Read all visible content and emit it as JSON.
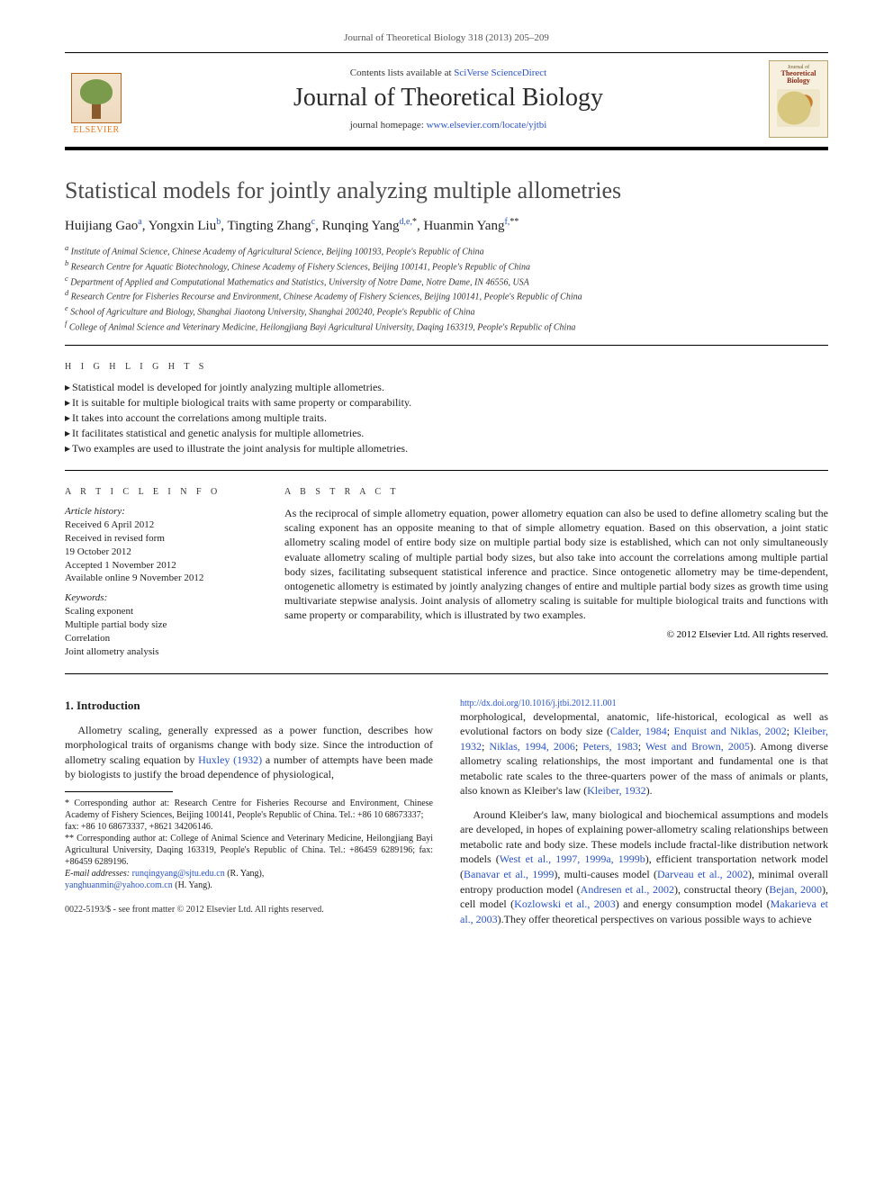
{
  "top_citation": "Journal of Theoretical Biology 318 (2013) 205–209",
  "header": {
    "contents_prefix": "Contents lists available at ",
    "contents_link": "SciVerse ScienceDirect",
    "journal_name": "Journal of Theoretical Biology",
    "homepage_prefix": "journal homepage: ",
    "homepage_link": "www.elsevier.com/locate/yjtbi",
    "elsevier_word": "ELSEVIER",
    "cover_small1": "Journal of",
    "cover_small2a": "Theoretical",
    "cover_small2b": "Biology"
  },
  "title": "Statistical models for jointly analyzing multiple allometries",
  "authors_html": {
    "a1_name": "Huijiang Gao",
    "a1_sup": "a",
    "a2_name": "Yongxin Liu",
    "a2_sup": "b",
    "a3_name": "Tingting Zhang",
    "a3_sup": "c",
    "a4_name": "Runqing Yang",
    "a4_sup": "d,e,",
    "a4_star": "*",
    "a5_name": "Huanmin Yang",
    "a5_sup": "f,",
    "a5_star": "**"
  },
  "affiliations": {
    "a": "Institute of Animal Science, Chinese Academy of Agricultural Science, Beijing 100193, People's Republic of China",
    "b": "Research Centre for Aquatic Biotechnology, Chinese Academy of Fishery Sciences, Beijing 100141, People's Republic of China",
    "c": "Department of Applied and Computational Mathematics and Statistics, University of Notre Dame, Notre Dame, IN 46556, USA",
    "d": "Research Centre for Fisheries Recourse and Environment, Chinese Academy of Fishery Sciences, Beijing 100141, People's Republic of China",
    "e": "School of Agriculture and Biology, Shanghai Jiaotong University, Shanghai 200240, People's Republic of China",
    "f": "College of Animal Science and Veterinary Medicine, Heilongjiang Bayi Agricultural University, Daqing 163319, People's Republic of China"
  },
  "labels": {
    "highlights": "H I G H L I G H T S",
    "article_info": "A R T I C L E   I N F O",
    "abstract": "A B S T R A C T"
  },
  "highlights": [
    "Statistical model is developed for jointly analyzing multiple allometries.",
    "It is suitable for multiple biological traits with same property or comparability.",
    "It takes into account the correlations among multiple traits.",
    "It facilitates statistical and genetic analysis for multiple allometries.",
    "Two examples are used to illustrate the joint analysis for multiple allometries."
  ],
  "article_info": {
    "history_h": "Article history:",
    "history": [
      "Received 6 April 2012",
      "Received in revised form",
      "19 October 2012",
      "Accepted 1 November 2012",
      "Available online 9 November 2012"
    ],
    "keywords_h": "Keywords:",
    "keywords": [
      "Scaling exponent",
      "Multiple partial body size",
      "Correlation",
      "Joint allometry analysis"
    ]
  },
  "abstract": "As the reciprocal of simple allometry equation, power allometry equation can also be used to define allometry scaling but the scaling exponent has an opposite meaning to that of simple allometry equation. Based on this observation, a joint static allometry scaling model of entire body size on multiple partial body size is established, which can not only simultaneously evaluate allometry scaling of multiple partial body sizes, but also take into account the correlations among multiple partial body sizes, facilitating subsequent statistical inference and practice. Since ontogenetic allometry may be time-dependent, ontogenetic allometry is estimated by jointly analyzing changes of entire and multiple partial body sizes as growth time using multivariate stepwise analysis. Joint analysis of allometry scaling is suitable for multiple biological traits and functions with same property or comparability, which is illustrated by two examples.",
  "copyright": "© 2012 Elsevier Ltd. All rights reserved.",
  "body": {
    "sec1_h": "1. Introduction",
    "p1a": "Allometry scaling, generally expressed as a power function, describes how morphological traits of organisms change with body size. Since the introduction of allometry scaling equation by ",
    "p1_c1": "Huxley (1932)",
    "p1b": " a number of attempts have been made by biologists to justify the broad dependence of physiological, ",
    "p2a": "morphological, developmental, anatomic, life-historical, ecological as well as evolutional factors on body size (",
    "p2_c1": "Calder, 1984",
    "p2_s1": "; ",
    "p2_c2": "Enquist and Niklas, 2002",
    "p2_s2": "; ",
    "p2_c3": "Kleiber, 1932",
    "p2_s3": "; ",
    "p2_c4": "Niklas, 1994, 2006",
    "p2_s4": "; ",
    "p2_c5": "Peters, 1983",
    "p2_s5": "; ",
    "p2_c6": "West and Brown, 2005",
    "p2b": "). Among diverse allometry scaling relationships, the most important and fundamental one is that metabolic rate scales to the three-quarters power of the mass of animals or plants, also known as Kleiber's law (",
    "p2_c7": "Kleiber, 1932",
    "p2c": ").",
    "p3a": "Around Kleiber's law, many biological and biochemical assumptions and models are developed, in hopes of explaining power-allometry scaling relationships between metabolic rate and body size. These models include fractal-like distribution network models (",
    "p3_c1": "West et al., 1997, 1999a, 1999b",
    "p3b": "), efficient transportation network model (",
    "p3_c2": "Banavar et al., 1999",
    "p3c": "), multi-causes model (",
    "p3_c3": "Darveau et al., 2002",
    "p3d": "), minimal overall entropy production model (",
    "p3_c4": "Andresen et al., 2002",
    "p3e": "), constructal theory (",
    "p3_c5": "Bejan, 2000",
    "p3f": "), cell model (",
    "p3_c6": "Kozlowski et al., 2003",
    "p3g": ") and energy consumption model (",
    "p3_c7": "Makarieva et al., 2003",
    "p3h": ").They offer theoretical perspectives on various possible ways to achieve"
  },
  "footnotes": {
    "c1a": "* Corresponding author at: Research Centre for Fisheries Recourse and Environment, Chinese Academy of Fishery Sciences, Beijing 100141, People's Republic of China. Tel.: +86 10 68673337;",
    "c1b": "fax: +86 10 68673337, +8621 34206146.",
    "c2a": "** Corresponding author at: College of Animal Science and Veterinary Medicine, Heilongjiang Bayi Agricultural University, Daqing 163319, People's Republic of China. Tel.: +86459 6289196; fax: +86459 6289196.",
    "email_h": "E-mail addresses:",
    "email1": "runqingyang@sjtu.edu.cn",
    "email1_who": " (R. Yang),",
    "email2": "yanghuanmin@yahoo.com.cn",
    "email2_who": " (H. Yang)."
  },
  "bottom": {
    "line1": "0022-5193/$ - see front matter © 2012 Elsevier Ltd. All rights reserved.",
    "doi_link": "http://dx.doi.org/10.1016/j.jtbi.2012.11.001"
  },
  "colors": {
    "link": "#2a54c7",
    "text": "#222222",
    "elsevier_orange": "#e8791a"
  }
}
